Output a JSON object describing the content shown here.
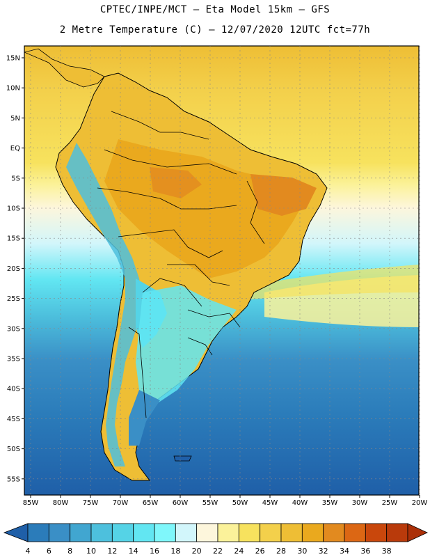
{
  "title": {
    "line1": "CPTEC/INPE/MCT –  Eta Model 15km – GFS",
    "line2": "2 Metre Temperature (C) – 12/07/2020 12UTC fct=77h"
  },
  "map": {
    "lat_labels": [
      "15N",
      "10N",
      "5N",
      "EQ",
      "5S",
      "10S",
      "15S",
      "20S",
      "25S",
      "30S",
      "35S",
      "40S",
      "45S",
      "50S",
      "55S"
    ],
    "lon_labels": [
      "85W",
      "80W",
      "75W",
      "70W",
      "65W",
      "60W",
      "55W",
      "50W",
      "45W",
      "40W",
      "35W",
      "30W",
      "25W",
      "20W"
    ]
  },
  "colorbar": {
    "labels": [
      "4",
      "6",
      "8",
      "10",
      "12",
      "14",
      "16",
      "18",
      "20",
      "22",
      "24",
      "26",
      "28",
      "30",
      "32",
      "34",
      "36",
      "38"
    ],
    "colors": [
      "#1f5fa8",
      "#2b7cba",
      "#3a8fc6",
      "#41a6d0",
      "#4dc0dd",
      "#55d3e6",
      "#62e6f2",
      "#7ff7fb",
      "#d2f6fb",
      "#fdf6dc",
      "#fbf29a",
      "#f7e25e",
      "#f3d04b",
      "#eebe35",
      "#eaa91e",
      "#e28a1f",
      "#dc6714",
      "#c9470c",
      "#b93a0b",
      "#ab3008"
    ]
  }
}
